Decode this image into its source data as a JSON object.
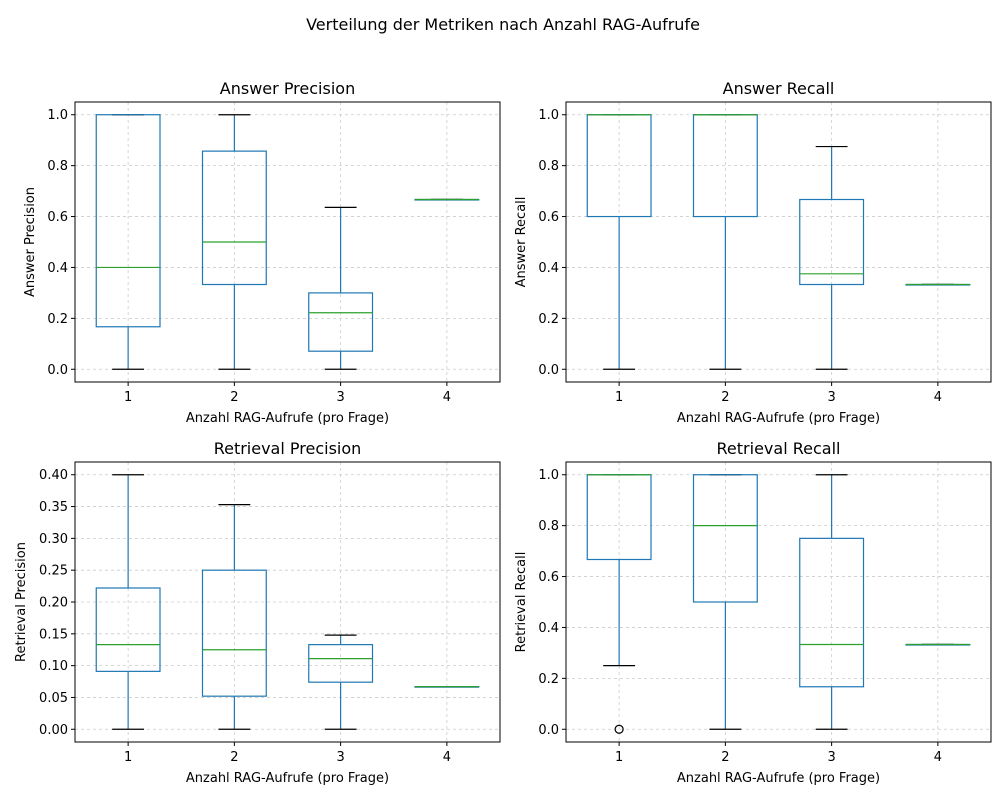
{
  "suptitle": "Verteilung der Metriken nach Anzahl RAG-Aufrufe",
  "colors": {
    "box": "#1f77b4",
    "median": "#2ca02c",
    "cap": "#000000"
  },
  "chart_data": [
    {
      "type": "box",
      "title": "Answer Precision",
      "xlabel": "Anzahl RAG-Aufrufe (pro Frage)",
      "ylabel": "Answer Precision",
      "categories": [
        "1",
        "2",
        "3",
        "4"
      ],
      "ylim": [
        -0.05,
        1.05
      ],
      "yticks": [
        0.0,
        0.2,
        0.4,
        0.6,
        0.8,
        1.0
      ],
      "ytick_labels": [
        "0.0",
        "0.2",
        "0.4",
        "0.6",
        "0.8",
        "1.0"
      ],
      "grid": true,
      "boxes": [
        {
          "category": "1",
          "whislo": 0.0,
          "q1": 0.167,
          "med": 0.4,
          "q3": 1.0,
          "whishi": 1.0,
          "fliers": []
        },
        {
          "category": "2",
          "whislo": 0.0,
          "q1": 0.333,
          "med": 0.5,
          "q3": 0.857,
          "whishi": 1.0,
          "fliers": []
        },
        {
          "category": "3",
          "whislo": 0.0,
          "q1": 0.071,
          "med": 0.222,
          "q3": 0.3,
          "whishi": 0.636,
          "fliers": []
        },
        {
          "category": "4",
          "whislo": 0.667,
          "q1": 0.667,
          "med": 0.667,
          "q3": 0.667,
          "whishi": 0.667,
          "fliers": []
        }
      ]
    },
    {
      "type": "box",
      "title": "Answer Recall",
      "xlabel": "Anzahl RAG-Aufrufe (pro Frage)",
      "ylabel": "Answer Recall",
      "categories": [
        "1",
        "2",
        "3",
        "4"
      ],
      "ylim": [
        -0.05,
        1.05
      ],
      "yticks": [
        0.0,
        0.2,
        0.4,
        0.6,
        0.8,
        1.0
      ],
      "ytick_labels": [
        "0.0",
        "0.2",
        "0.4",
        "0.6",
        "0.8",
        "1.0"
      ],
      "grid": true,
      "boxes": [
        {
          "category": "1",
          "whislo": 0.0,
          "q1": 0.6,
          "med": 1.0,
          "q3": 1.0,
          "whishi": 1.0,
          "fliers": []
        },
        {
          "category": "2",
          "whislo": 0.0,
          "q1": 0.6,
          "med": 1.0,
          "q3": 1.0,
          "whishi": 1.0,
          "fliers": []
        },
        {
          "category": "3",
          "whislo": 0.0,
          "q1": 0.333,
          "med": 0.375,
          "q3": 0.667,
          "whishi": 0.875,
          "fliers": []
        },
        {
          "category": "4",
          "whislo": 0.333,
          "q1": 0.333,
          "med": 0.333,
          "q3": 0.333,
          "whishi": 0.333,
          "fliers": []
        }
      ]
    },
    {
      "type": "box",
      "title": "Retrieval Precision",
      "xlabel": "Anzahl RAG-Aufrufe (pro Frage)",
      "ylabel": "Retrieval Precision",
      "categories": [
        "1",
        "2",
        "3",
        "4"
      ],
      "ylim": [
        -0.02,
        0.42
      ],
      "yticks": [
        0.0,
        0.05,
        0.1,
        0.15,
        0.2,
        0.25,
        0.3,
        0.35,
        0.4
      ],
      "ytick_labels": [
        "0.00",
        "0.05",
        "0.10",
        "0.15",
        "0.20",
        "0.25",
        "0.30",
        "0.35",
        "0.40"
      ],
      "grid": true,
      "boxes": [
        {
          "category": "1",
          "whislo": 0.0,
          "q1": 0.091,
          "med": 0.133,
          "q3": 0.222,
          "whishi": 0.4,
          "fliers": []
        },
        {
          "category": "2",
          "whislo": 0.0,
          "q1": 0.052,
          "med": 0.125,
          "q3": 0.25,
          "whishi": 0.353,
          "fliers": []
        },
        {
          "category": "3",
          "whislo": 0.0,
          "q1": 0.074,
          "med": 0.111,
          "q3": 0.133,
          "whishi": 0.148,
          "fliers": []
        },
        {
          "category": "4",
          "whislo": 0.067,
          "q1": 0.067,
          "med": 0.067,
          "q3": 0.067,
          "whishi": 0.067,
          "fliers": []
        }
      ]
    },
    {
      "type": "box",
      "title": "Retrieval Recall",
      "xlabel": "Anzahl RAG-Aufrufe (pro Frage)",
      "ylabel": "Retrieval Recall",
      "categories": [
        "1",
        "2",
        "3",
        "4"
      ],
      "ylim": [
        -0.05,
        1.05
      ],
      "yticks": [
        0.0,
        0.2,
        0.4,
        0.6,
        0.8,
        1.0
      ],
      "ytick_labels": [
        "0.0",
        "0.2",
        "0.4",
        "0.6",
        "0.8",
        "1.0"
      ],
      "grid": true,
      "boxes": [
        {
          "category": "1",
          "whislo": 0.25,
          "q1": 0.667,
          "med": 1.0,
          "q3": 1.0,
          "whishi": 1.0,
          "fliers": [
            0.0
          ]
        },
        {
          "category": "2",
          "whislo": 0.0,
          "q1": 0.5,
          "med": 0.8,
          "q3": 1.0,
          "whishi": 1.0,
          "fliers": []
        },
        {
          "category": "3",
          "whislo": 0.0,
          "q1": 0.167,
          "med": 0.333,
          "q3": 0.75,
          "whishi": 1.0,
          "fliers": []
        },
        {
          "category": "4",
          "whislo": 0.333,
          "q1": 0.333,
          "med": 0.333,
          "q3": 0.333,
          "whishi": 0.333,
          "fliers": []
        }
      ]
    }
  ]
}
